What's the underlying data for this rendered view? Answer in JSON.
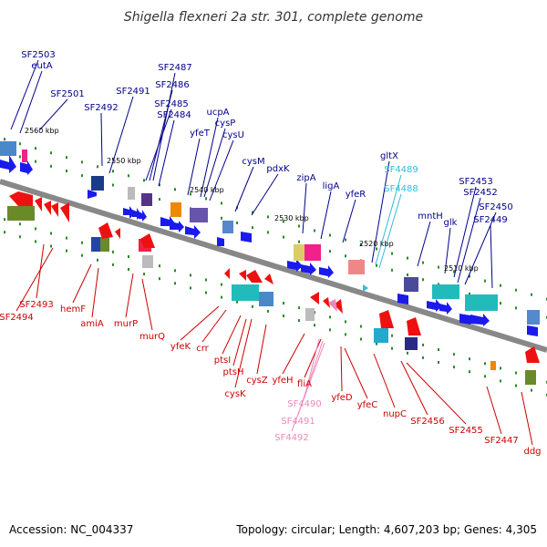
{
  "title": "Shigella flexneri 2a str. 301, complete genome",
  "accession": "Accession: NC_004337",
  "topology": "Topology: circular; Length: 4,607,203 bp; Genes: 4,305",
  "colors": {
    "forward_label": "#00008b",
    "reverse_label": "#cc0000",
    "cyan_label": "#33bbdd",
    "pink_label": "#ee88bb",
    "axis": "#888888"
  },
  "kbp_marks": [
    "2560 kbp",
    "2550 kbp",
    "2540 kbp",
    "2530 kbp",
    "2520 kbp",
    "2510 kbp"
  ],
  "top_labels": [
    "SF2503",
    "eutA",
    "SF2501",
    "SF2492",
    "SF2491",
    "SF2487",
    "SF2486",
    "SF2485",
    "SF2484",
    "ucpA",
    "cysP",
    "yfeT",
    "cysU",
    "cysM",
    "pdxK",
    "zipA",
    "ligA",
    "yfeR",
    "gltX",
    "mntH",
    "glk",
    "SF2453",
    "SF2452",
    "SF2450",
    "SF2449"
  ],
  "top_cyan_labels": [
    "SF4489",
    "SF4488"
  ],
  "bottom_labels": [
    "SF2493",
    "SF2494",
    "hemF",
    "amiA",
    "murP",
    "murQ",
    "yfeK",
    "crr",
    "ptsI",
    "ptsH",
    "cysK",
    "cysZ",
    "yfeH",
    "fliA",
    "yfeD",
    "yfeC",
    "nupC",
    "SF2456",
    "SF2455",
    "SF2447",
    "ddg"
  ],
  "bottom_pink_labels": [
    "SF4490",
    "SF4491",
    "SF4492"
  ]
}
